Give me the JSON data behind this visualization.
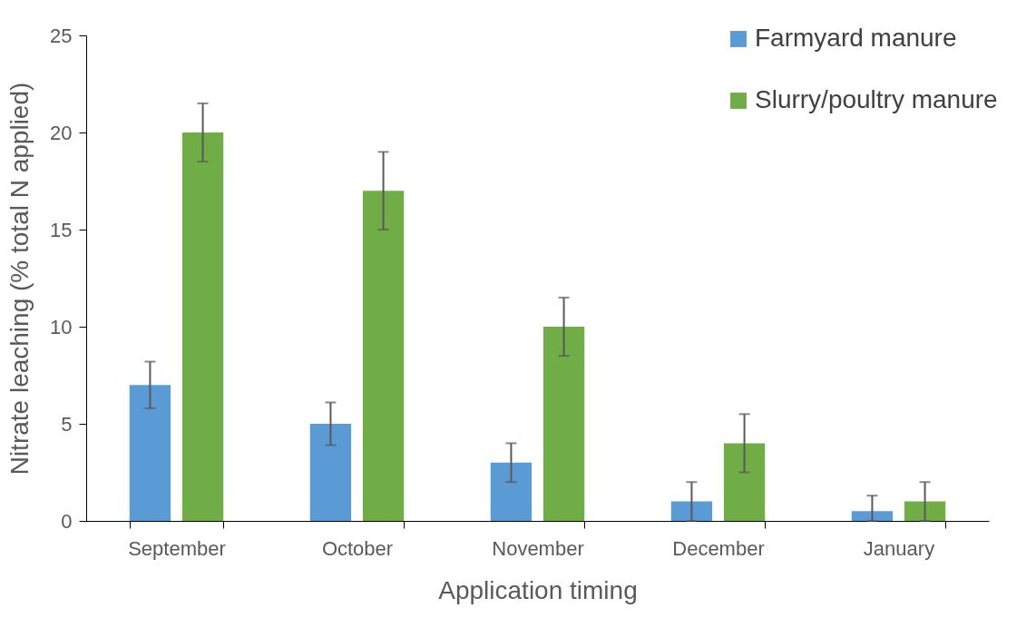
{
  "chart_data": {
    "type": "bar",
    "xlabel": "Application timing",
    "ylabel": "Nitrate leaching (% total N applied)",
    "categories": [
      "September",
      "October",
      "November",
      "December",
      "January"
    ],
    "series": [
      {
        "name": "Farmyard manure",
        "color": "#5b9bd5",
        "values": [
          7,
          5,
          3,
          1,
          0.5
        ],
        "errors": [
          1.2,
          1.1,
          1,
          1,
          [
            0,
            1.3
          ]
        ]
      },
      {
        "name": "Slurry/poultry manure",
        "color": "#70ad47",
        "values": [
          20,
          17,
          10,
          4,
          1
        ],
        "errors": [
          1.5,
          2,
          1.5,
          1.5,
          1
        ]
      }
    ],
    "ylim": [
      0,
      25
    ],
    "yticks": [
      0,
      5,
      10,
      15,
      20,
      25
    ],
    "legend": "top right"
  }
}
